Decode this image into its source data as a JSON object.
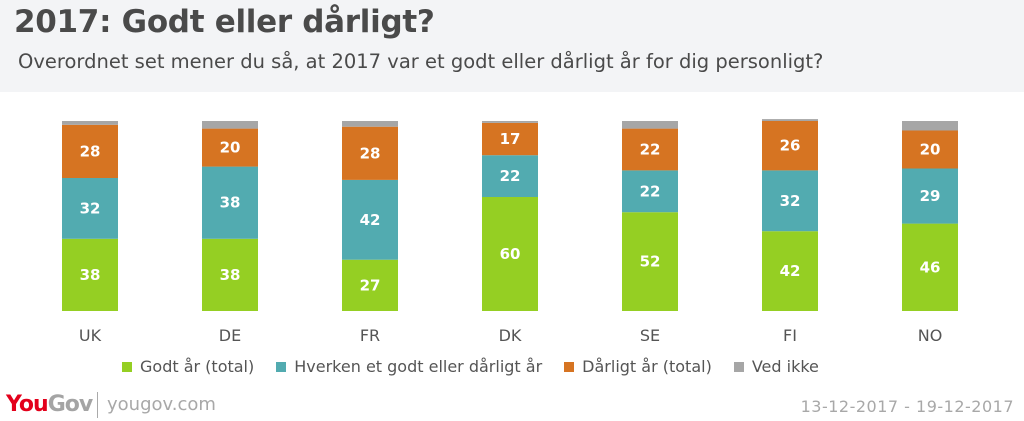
{
  "header": {
    "title": "2017: Godt eller dårligt?",
    "subtitle": "Overordnet set mener du så, at 2017 var et godt eller dårligt år for dig personligt?"
  },
  "chart_data": {
    "type": "bar",
    "stacked": true,
    "orientation": "vertical",
    "title": "2017: Godt eller dårligt?",
    "subtitle": "Overordnet set mener du så, at 2017 var et godt eller dårligt år for dig personligt?",
    "xlabel": "",
    "ylabel": "",
    "ylim": [
      0,
      100
    ],
    "grid": false,
    "legend_position": "bottom",
    "categories": [
      "UK",
      "DE",
      "FR",
      "DK",
      "SE",
      "FI",
      "NO"
    ],
    "series": [
      {
        "name": "Godt år (total)",
        "color": "#95cf23",
        "values": [
          38,
          38,
          27,
          60,
          52,
          42,
          46
        ],
        "labeled": true
      },
      {
        "name": "Hverken et godt eller dårligt år",
        "color": "#52abb0",
        "values": [
          32,
          38,
          42,
          22,
          22,
          32,
          29
        ],
        "labeled": true
      },
      {
        "name": "Dårligt år (total)",
        "color": "#d67422",
        "values": [
          28,
          20,
          28,
          17,
          22,
          26,
          20
        ],
        "labeled": true
      },
      {
        "name": "Ved ikke",
        "color": "#a6a6a6",
        "values": [
          2,
          4,
          3,
          1,
          4,
          1,
          5
        ],
        "labeled": false
      }
    ]
  },
  "legend": {
    "items": [
      {
        "label": "Godt år (total)",
        "color": "#95cf23"
      },
      {
        "label": "Hverken et godt eller dårligt år",
        "color": "#52abb0"
      },
      {
        "label": "Dårligt år (total)",
        "color": "#d67422"
      },
      {
        "label": "Ved ikke",
        "color": "#a6a6a6"
      }
    ]
  },
  "footer": {
    "logo_you": "You",
    "logo_gov": "Gov",
    "site": "yougov.com",
    "date_range": "13-12-2017 - 19-12-2017"
  }
}
